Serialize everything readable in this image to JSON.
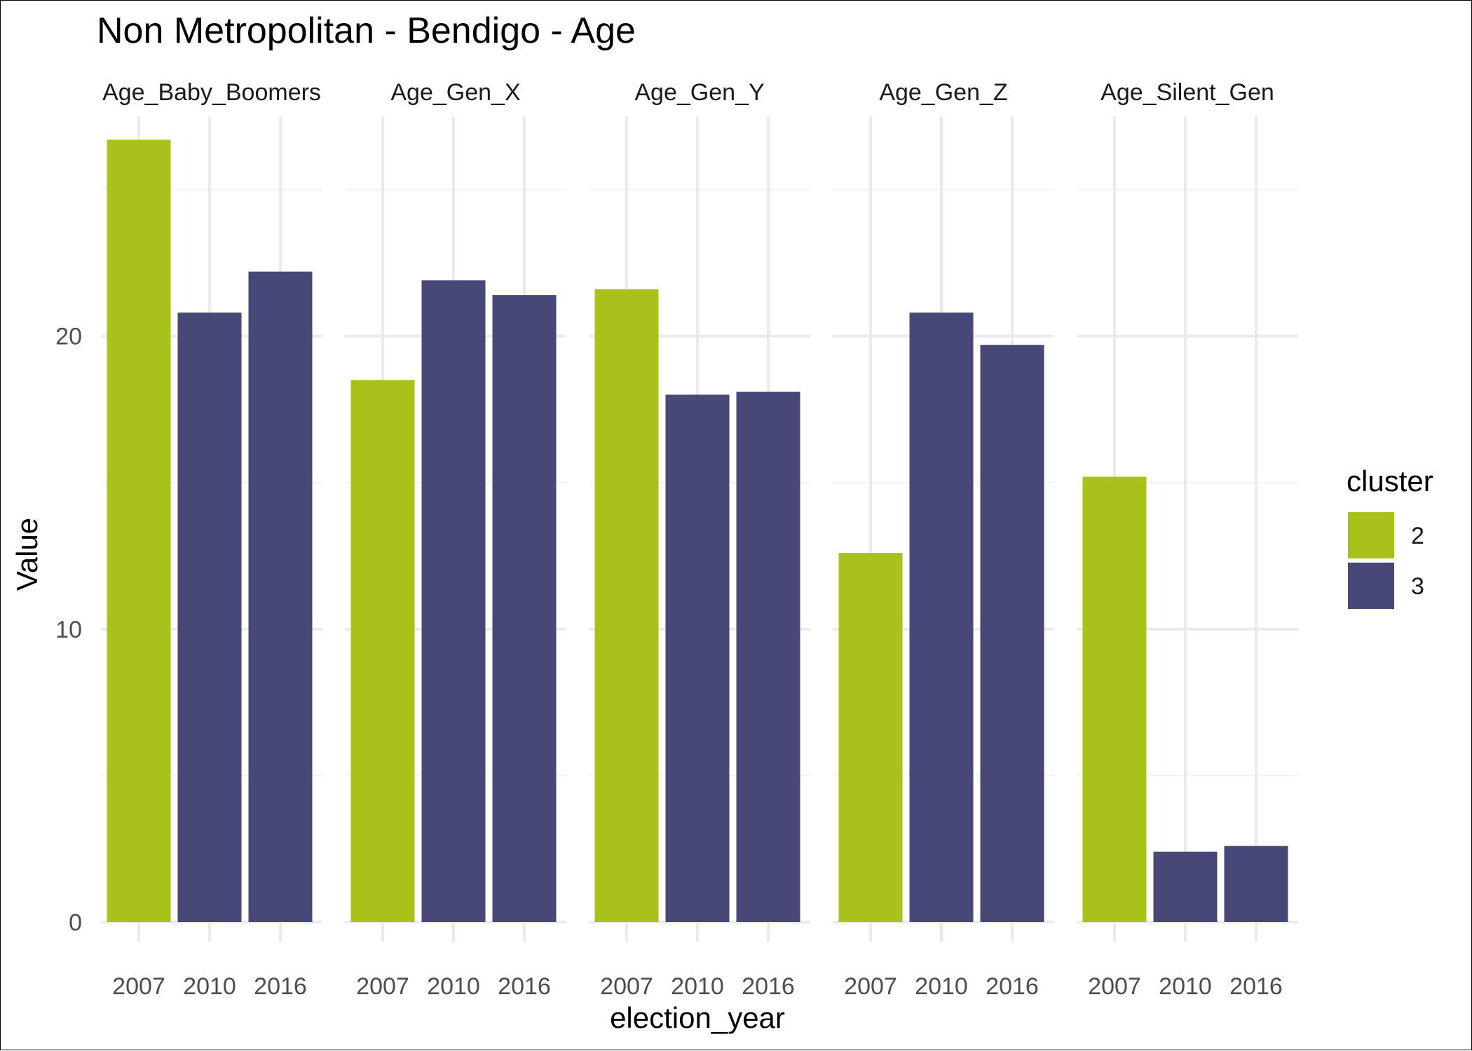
{
  "chart_data": {
    "type": "bar",
    "title": "Non Metropolitan - Bendigo - Age",
    "xlabel": "election_year",
    "ylabel": "Value",
    "ylim": [
      0,
      27.5
    ],
    "yticks": [
      0,
      10,
      20
    ],
    "grid": true,
    "x": [
      "2007",
      "2010",
      "2016"
    ],
    "facets": [
      {
        "label": "Age_Baby_Boomers",
        "values": [
          26.7,
          20.8,
          22.2
        ],
        "clusters": [
          "2",
          "3",
          "3"
        ]
      },
      {
        "label": "Age_Gen_X",
        "values": [
          18.5,
          21.9,
          21.4
        ],
        "clusters": [
          "2",
          "3",
          "3"
        ]
      },
      {
        "label": "Age_Gen_Y",
        "values": [
          21.6,
          18.0,
          18.1
        ],
        "clusters": [
          "2",
          "3",
          "3"
        ]
      },
      {
        "label": "Age_Gen_Z",
        "values": [
          12.6,
          20.8,
          19.7
        ],
        "clusters": [
          "2",
          "3",
          "3"
        ]
      },
      {
        "label": "Age_Silent_Gen",
        "values": [
          15.2,
          2.4,
          2.6
        ],
        "clusters": [
          "2",
          "3",
          "3"
        ]
      }
    ],
    "legend": {
      "title": "cluster",
      "position": "right",
      "items": [
        {
          "label": "2",
          "color": "#a9c11a"
        },
        {
          "label": "3",
          "color": "#474877"
        }
      ]
    }
  }
}
